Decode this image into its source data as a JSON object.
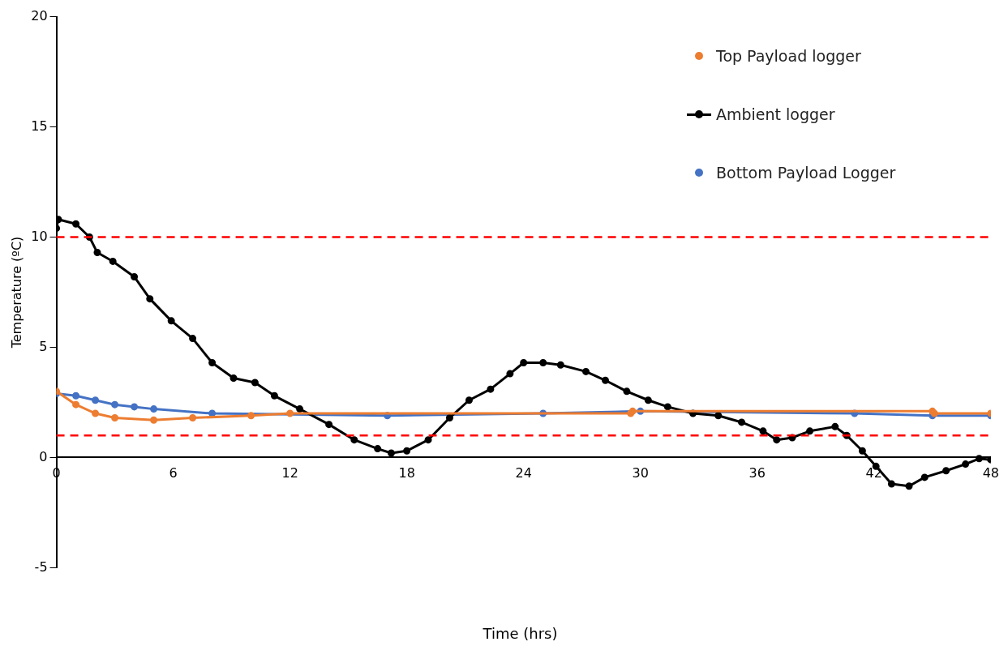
{
  "chart_data": {
    "type": "line",
    "xlabel": "Time (hrs)",
    "ylabel": "Temperature (ºC)",
    "xlim": [
      0,
      48
    ],
    "xticks": [
      0,
      6,
      12,
      18,
      24,
      30,
      36,
      42,
      48
    ],
    "ylim": [
      -5,
      20
    ],
    "yticks": [
      -5,
      0,
      5,
      10,
      15,
      20
    ],
    "grid": false,
    "legend": "top right",
    "marker": "circle",
    "series": [
      {
        "name": "Top Payload logger",
        "color": "#ed7d31",
        "x": [
          0,
          1,
          2,
          3,
          5,
          7,
          10,
          12,
          29.5,
          29.6,
          45,
          45.1,
          48
        ],
        "values": [
          3.0,
          2.4,
          2.0,
          1.8,
          1.7,
          1.8,
          1.9,
          2.0,
          2.0,
          2.1,
          2.1,
          2.0,
          2.0
        ]
      },
      {
        "name": "Ambient logger",
        "color": "#000000",
        "x": [
          0,
          0.1,
          1,
          1.7,
          2.1,
          2.9,
          4,
          4.8,
          5.9,
          7,
          8,
          9.1,
          10.2,
          11.2,
          12.5,
          14,
          15.3,
          16.5,
          17.2,
          18,
          19.1,
          20.2,
          21.2,
          22.3,
          23.3,
          24,
          25,
          25.9,
          27.2,
          28.2,
          29.3,
          30.4,
          31.4,
          32.7,
          34,
          35.2,
          36.3,
          37,
          37.8,
          38.7,
          40,
          40.6,
          41.4,
          42.1,
          42.9,
          43.8,
          44.6,
          45.7,
          46.7,
          47.4,
          48
        ],
        "values": [
          10.4,
          10.8,
          10.6,
          10.0,
          9.3,
          8.9,
          8.2,
          7.2,
          6.2,
          5.4,
          4.3,
          3.6,
          3.4,
          2.8,
          2.2,
          1.5,
          0.8,
          0.4,
          0.2,
          0.3,
          0.8,
          1.8,
          2.6,
          3.1,
          3.8,
          4.3,
          4.3,
          4.2,
          3.9,
          3.5,
          3.0,
          2.6,
          2.3,
          2.0,
          1.9,
          1.6,
          1.2,
          0.8,
          0.9,
          1.2,
          1.4,
          1.0,
          0.3,
          -0.4,
          -1.2,
          -1.3,
          -0.9,
          -0.6,
          -0.3,
          -0.05,
          -0.1
        ]
      },
      {
        "name": "Bottom Payload Logger",
        "color": "#4472c4",
        "x": [
          0,
          1,
          2,
          3,
          4,
          5,
          8,
          17,
          25,
          30,
          41,
          45,
          48
        ],
        "values": [
          2.9,
          2.8,
          2.6,
          2.4,
          2.3,
          2.2,
          2.0,
          1.9,
          2.0,
          2.1,
          2.0,
          1.9,
          1.9
        ]
      }
    ],
    "ref_lines": [
      {
        "axis": "y",
        "value": 10,
        "color": "#ff0000",
        "line_style": "dashed"
      },
      {
        "axis": "y",
        "value": 1,
        "color": "#ff0000",
        "line_style": "dashed"
      }
    ]
  }
}
